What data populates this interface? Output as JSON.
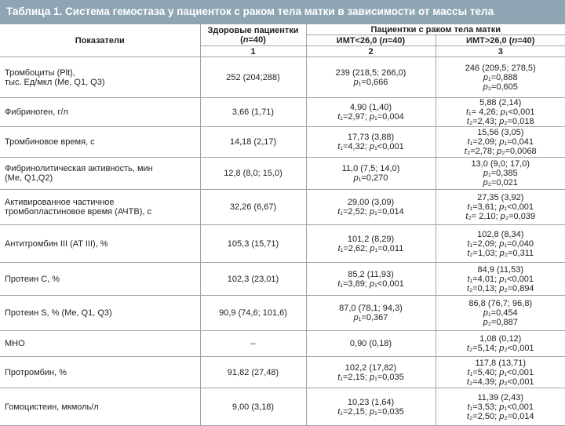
{
  "title": "Таблица 1. Система гемостаза у пациенток с раком тела матки в зависимости от массы тела",
  "table": {
    "header": {
      "indicator": "Показатели",
      "healthy": [
        "Здоровые пациентки",
        "(n=40)"
      ],
      "group": "Пациентки с раком тела матки",
      "bmi_low": "ИМТ<26,0 (n=40)",
      "bmi_high": "ИМТ>26,0 (n=40)",
      "numbers": [
        "1",
        "2",
        "3"
      ]
    },
    "rows": [
      [
        [
          "Тромбоциты (Plt),",
          "тыс. Ед/мкл (Me, Q1, Q3)"
        ],
        [
          "252 (204;288)"
        ],
        [
          "239 (218,5; 266,0)",
          "p₁=0,666"
        ],
        [
          "246 (209,5; 278,5)",
          "p₁=0,888",
          "p₂=0,605"
        ]
      ],
      [
        [
          "Фибриноген, г/л"
        ],
        [
          "3,66 (1,71)"
        ],
        [
          "4,90 (1,40)",
          "t₁=2,97; p₁=0,004"
        ],
        [
          "5,88 (2,14)",
          "t₁= 4,26; p₁<0,001",
          "t₂=2,43; p₂=0,018"
        ]
      ],
      [
        [
          "Тромбиновое время, с"
        ],
        [
          "14,18 (2,17)"
        ],
        [
          "17,73 (3,88)",
          "t₁=4,32; p₁<0,001"
        ],
        [
          "15,56 (3,05)",
          "t₁=2,09; p₁=0,041",
          "t₂=2,78; p₂=0,0068"
        ]
      ],
      [
        [
          "Фибринолитическая активность, мин",
          "(Me, Q1,Q2)"
        ],
        [
          "12,8 (8,0; 15,0)"
        ],
        [
          "11,0 (7,5; 14,0)",
          "p₁=0,270"
        ],
        [
          "13,0 (9,0; 17,0)",
          "p₁=0,385",
          "p₂=0,021"
        ]
      ],
      [
        [
          "Активированное частичное",
          "тромбопластиновое время (АЧТВ), с"
        ],
        [
          "32,26 (6,67)"
        ],
        [
          "29,00 (3,09)",
          "t₁=2,52;  p₁=0,014"
        ],
        [
          "27,35 (3,92)",
          "t₁=3,61; p₁<0,001",
          "t₂= 2,10; p₂=0,039"
        ]
      ],
      [
        [
          "Антитромбин III (AT III), %"
        ],
        [
          "105,3 (15,71)"
        ],
        [
          "101,2 (8,29)",
          "t₁=2,62; p₁=0,011"
        ],
        [
          "102,8 (8,34)",
          "t₁=2,09; p₁=0,040",
          "t₂=1,03; p₂=0,311"
        ]
      ],
      [
        [
          "Протеин С, %"
        ],
        [
          "102,3 (23,01)"
        ],
        [
          "85,2 (11,93)",
          "t₁=3,89; p₁<0,001"
        ],
        [
          "84,9 (11,53)",
          "t₁=4,01; p₁<0,001",
          "t₂=0,13; p₂=0,894"
        ]
      ],
      [
        [
          "Протеин S, % (Me, Q1, Q3)"
        ],
        [
          "90,9 (74,6; 101,6)"
        ],
        [
          "87,0 (78,1; 94,3)",
          "p₁=0,367"
        ],
        [
          "86,8 (76,7; 96,8)",
          "p₁=0,454",
          "p₂=0,887"
        ]
      ],
      [
        [
          "МНО"
        ],
        [
          "–"
        ],
        [
          "0,90 (0,18)"
        ],
        [
          "1,08 (0,12)",
          "t₂=5,14; p₂<0,001"
        ]
      ],
      [
        [
          "Протромбин, %"
        ],
        [
          "91,82 (27,48)"
        ],
        [
          "102,2 (17,82)",
          "t₁=2,15; p₁=0,035"
        ],
        [
          "117,8 (13,71)",
          "t₁=5,40; p₁<0,001",
          "t₂=4,39; p₂<0,001"
        ]
      ],
      [
        [
          "Гомоцистеин, мкмоль/л"
        ],
        [
          "9,00 (3,18)"
        ],
        [
          "10,23 (1,64)",
          "t₁=2,15; p₁=0,035"
        ],
        [
          "11,39 (2,43)",
          "t₁=3,53; p₁<0,001",
          "t₂=2,50; p₂=0,014"
        ]
      ]
    ]
  }
}
